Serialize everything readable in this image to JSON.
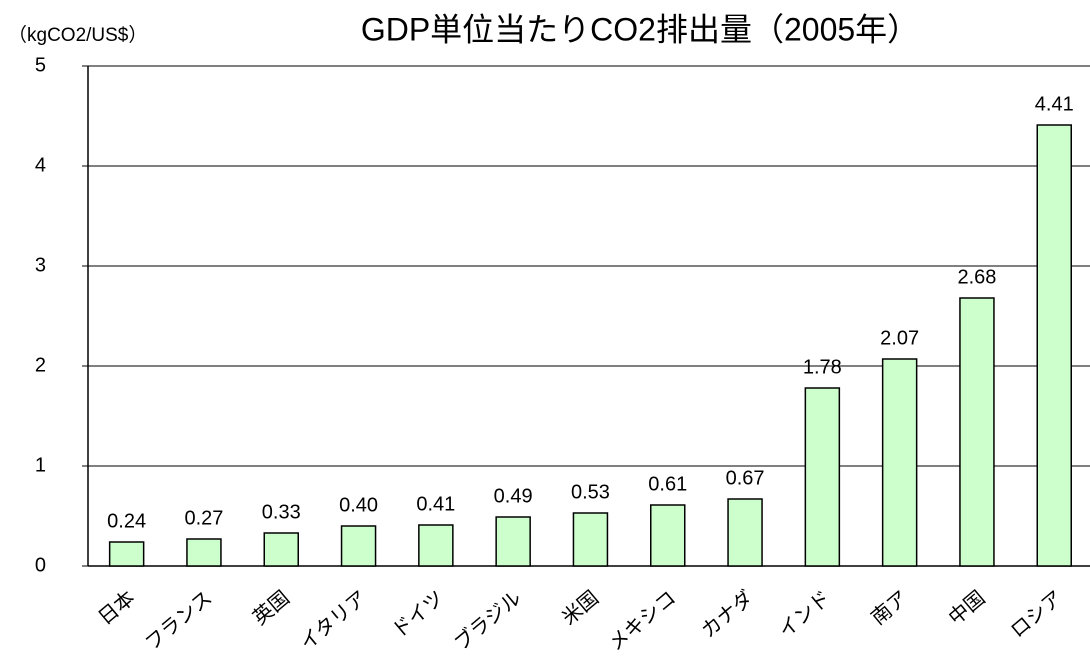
{
  "chart_data": {
    "type": "bar",
    "title": "GDP単位当たりCO2排出量（2005年）",
    "y_axis_label": "（kgCO2/US$）",
    "categories": [
      "日本",
      "フランス",
      "英国",
      "イタリア",
      "ドイツ",
      "ブラジル",
      "米国",
      "メキシコ",
      "カナダ",
      "インド",
      "南ア",
      "中国",
      "ロシア"
    ],
    "values": [
      0.24,
      0.27,
      0.33,
      0.4,
      0.41,
      0.49,
      0.53,
      0.61,
      0.67,
      1.78,
      2.07,
      2.68,
      4.41
    ],
    "value_labels": [
      "0.24",
      "0.27",
      "0.33",
      "0.40",
      "0.41",
      "0.49",
      "0.53",
      "0.61",
      "0.67",
      "1.78",
      "2.07",
      "2.68",
      "4.41"
    ],
    "color": "#ccffcc",
    "ylim": [
      0,
      5
    ],
    "yticks": [
      0,
      1,
      2,
      3,
      4,
      5
    ],
    "grid": true
  }
}
